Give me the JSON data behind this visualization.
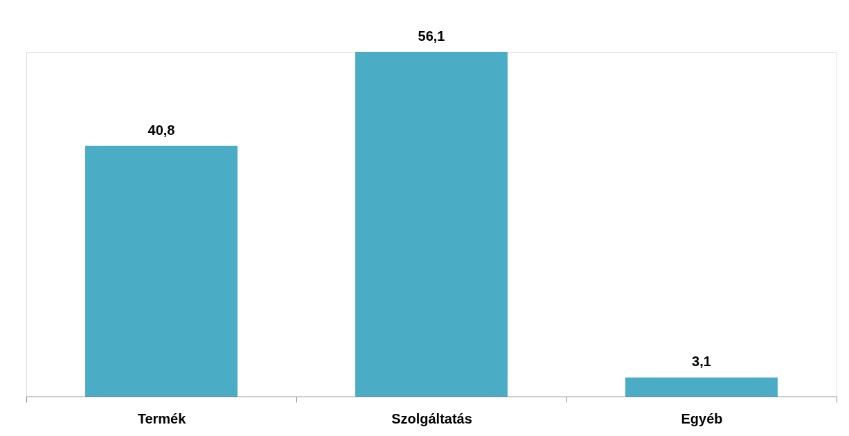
{
  "chart_data": {
    "type": "bar",
    "categories": [
      "Termék",
      "Szolgáltatás",
      "Egyéb"
    ],
    "values": [
      40.8,
      56.1,
      3.1
    ],
    "color": "#4bacc6",
    "value_labels": [
      "40,8",
      "56,1",
      "3,1"
    ],
    "grid": false
  }
}
